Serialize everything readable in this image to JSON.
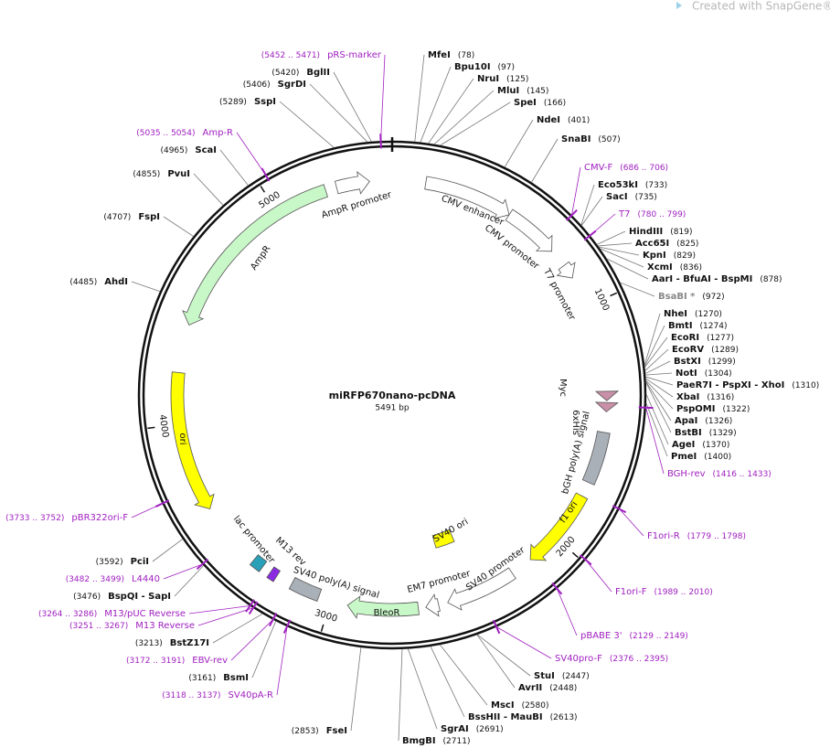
{
  "header": {
    "watermark": "Created with SnapGene®"
  },
  "map": {
    "name": "miRFP670nano-pcDNA",
    "size": "5491 bp",
    "ruler": [
      "1000",
      "2000",
      "3000",
      "4000",
      "5000"
    ]
  },
  "features": [
    {
      "label": "AmpR promoter"
    },
    {
      "label": "AmpR"
    },
    {
      "label": "CMV enhancer"
    },
    {
      "label": "CMV promoter"
    },
    {
      "label": "T7 promoter"
    },
    {
      "label": "Myc"
    },
    {
      "label": "6xHis"
    },
    {
      "label": "bGH poly(A) signal"
    },
    {
      "label": "f1 ori"
    },
    {
      "label": "SV40 promoter"
    },
    {
      "label": "EM7 promoter"
    },
    {
      "label": "BleoR"
    },
    {
      "label": "SV40 ori"
    },
    {
      "label": "SV40 poly(A) signal"
    },
    {
      "label": "M13 rev"
    },
    {
      "label": "lac promoter"
    },
    {
      "label": "ori"
    }
  ],
  "enzymes": [
    {
      "name": "MfeI",
      "position": "(78)"
    },
    {
      "name": "Bpu10I",
      "position": "(97)"
    },
    {
      "name": "NruI",
      "position": "(125)"
    },
    {
      "name": "MluI",
      "position": "(145)"
    },
    {
      "name": "SpeI",
      "position": "(166)"
    },
    {
      "name": "NdeI",
      "position": "(401)"
    },
    {
      "name": "SnaBI",
      "position": "(507)"
    },
    {
      "name": "Eco53kI",
      "position": "(733)"
    },
    {
      "name": "SacI",
      "position": "(735)"
    },
    {
      "name": "HindIII",
      "position": "(819)"
    },
    {
      "name": "Acc65I",
      "position": "(825)"
    },
    {
      "name": "KpnI",
      "position": "(829)"
    },
    {
      "name": "XcmI",
      "position": "(836)"
    },
    {
      "name": "AarI - BfuAI - BspMI",
      "position": "(878)"
    },
    {
      "name": "BsaBI *",
      "position": "(972)",
      "color": "#888888"
    },
    {
      "name": "NheI",
      "position": "(1270)"
    },
    {
      "name": "BmtI",
      "position": "(1274)"
    },
    {
      "name": "EcoRI",
      "position": "(1277)"
    },
    {
      "name": "EcoRV",
      "position": "(1289)"
    },
    {
      "name": "BstXI",
      "position": "(1299)"
    },
    {
      "name": "NotI",
      "position": "(1304)"
    },
    {
      "name": "PaeR7I - PspXI - XhoI",
      "position": "(1310)"
    },
    {
      "name": "XbaI",
      "position": "(1316)"
    },
    {
      "name": "PspOMI",
      "position": "(1322)"
    },
    {
      "name": "ApaI",
      "position": "(1326)"
    },
    {
      "name": "BstBI",
      "position": "(1329)"
    },
    {
      "name": "AgeI",
      "position": "(1370)"
    },
    {
      "name": "PmeI",
      "position": "(1400)"
    },
    {
      "name": "StuI",
      "position": "(2447)"
    },
    {
      "name": "AvrII",
      "position": "(2448)"
    },
    {
      "name": "MscI",
      "position": "(2580)"
    },
    {
      "name": "BssHII - MauBI",
      "position": "(2613)"
    },
    {
      "name": "SgrAI",
      "position": "(2691)"
    },
    {
      "name": "BmgBI",
      "position": "(2711)"
    },
    {
      "name": "FseI",
      "position": "(2853)"
    },
    {
      "name": "BsmI",
      "position": "(3161)"
    },
    {
      "name": "BstZ17I",
      "position": "(3213)"
    },
    {
      "name": "BspQI - SapI",
      "position": "(3476)"
    },
    {
      "name": "PciI",
      "position": "(3592)"
    },
    {
      "name": "AhdI",
      "position": "(4485)"
    },
    {
      "name": "FspI",
      "position": "(4707)"
    },
    {
      "name": "PvuI",
      "position": "(4855)"
    },
    {
      "name": "ScaI",
      "position": "(4965)"
    },
    {
      "name": "SspI",
      "position": "(5289)"
    },
    {
      "name": "SgrDI",
      "position": "(5406)"
    },
    {
      "name": "BglII",
      "position": "(5420)"
    }
  ],
  "primers": [
    {
      "name": "CMV-F",
      "position": "(686 .. 706)"
    },
    {
      "name": "T7",
      "position": "(780 .. 799)"
    },
    {
      "name": "BGH-rev",
      "position": "(1416 .. 1433)"
    },
    {
      "name": "F1ori-R",
      "position": "(1779 .. 1798)"
    },
    {
      "name": "F1ori-F",
      "position": "(1989 .. 2010)"
    },
    {
      "name": "pBABE 3'",
      "position": "(2129 .. 2149)"
    },
    {
      "name": "SV40pro-F",
      "position": "(2376 .. 2395)"
    },
    {
      "name": "SV40pA-R",
      "position": "(3118 .. 3137)"
    },
    {
      "name": "EBV-rev",
      "position": "(3172 .. 3191)"
    },
    {
      "name": "M13 Reverse",
      "position": "(3251 .. 3267)"
    },
    {
      "name": "M13/pUC Reverse",
      "position": "(3264 .. 3286)"
    },
    {
      "name": "L4440",
      "position": "(3482 .. 3499)"
    },
    {
      "name": "pBR322ori-F",
      "position": "(3733 .. 3752)"
    },
    {
      "name": "Amp-R",
      "position": "(5035 .. 5054)"
    },
    {
      "name": "pRS-marker",
      "position": "(5452 .. 5471)"
    }
  ]
}
